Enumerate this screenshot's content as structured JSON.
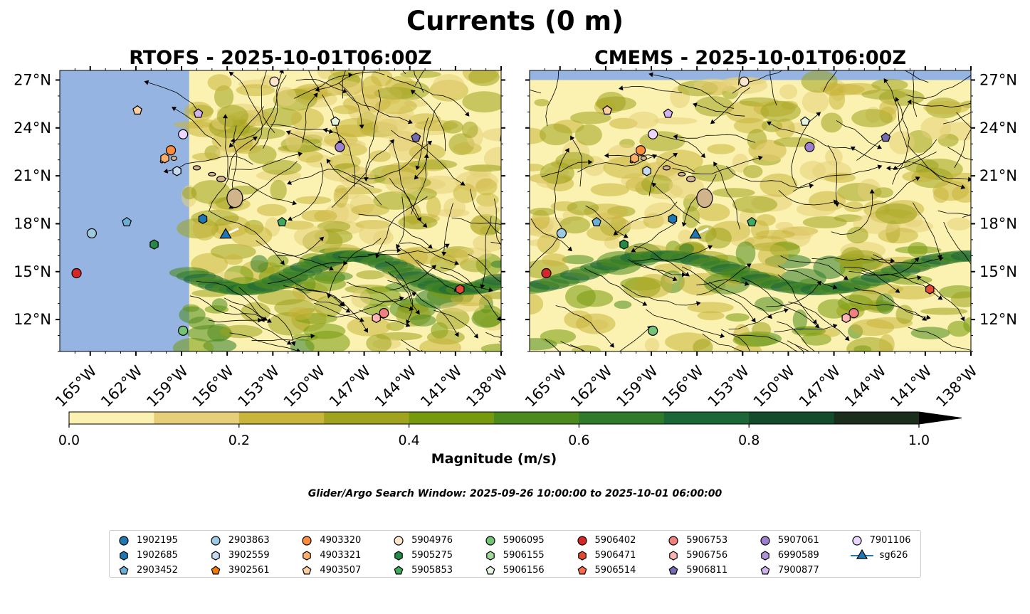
{
  "title": "Currents (0 m)",
  "window_note": "Glider/Argo Search Window: 2025-09-26 10:00:00 to 2025-10-01 06:00:00",
  "colors": {
    "land": "#d2b48c",
    "masked": "#95b4e1",
    "colormap": [
      "#fbf1b0",
      "#e6cf78",
      "#c9b53c",
      "#9fa31e",
      "#769a0e",
      "#4c8a1e",
      "#2f7b2b",
      "#1d6637",
      "#134c2b",
      "#1b2d1d"
    ]
  },
  "chart_data": {
    "type": "map",
    "panels": [
      {
        "title": "RTOFS - 2025-10-01T06:00Z",
        "model": "RTOFS",
        "time": "2025-10-01T06:00Z",
        "ytick_side": "left",
        "data_lon_min": -158.5
      },
      {
        "title": "CMEMS - 2025-10-01T06:00Z",
        "model": "CMEMS",
        "time": "2025-10-01T06:00Z",
        "ytick_side": "right",
        "data_lat_max": 27.0
      }
    ],
    "lon_range": [
      -167,
      -138
    ],
    "lat_range": [
      10,
      27.6
    ],
    "xticks": [
      {
        "lon": -165,
        "label": "165°W"
      },
      {
        "lon": -162,
        "label": "162°W"
      },
      {
        "lon": -159,
        "label": "159°W"
      },
      {
        "lon": -156,
        "label": "156°W"
      },
      {
        "lon": -153,
        "label": "153°W"
      },
      {
        "lon": -150,
        "label": "150°W"
      },
      {
        "lon": -147,
        "label": "147°W"
      },
      {
        "lon": -144,
        "label": "144°W"
      },
      {
        "lon": -141,
        "label": "141°W"
      },
      {
        "lon": -138,
        "label": "138°W"
      }
    ],
    "yticks": [
      {
        "lat": 12,
        "label": "12°N"
      },
      {
        "lat": 15,
        "label": "15°N"
      },
      {
        "lat": 18,
        "label": "18°N"
      },
      {
        "lat": 21,
        "label": "21°N"
      },
      {
        "lat": 24,
        "label": "24°N"
      },
      {
        "lat": 27,
        "label": "27°N"
      }
    ],
    "colorbar": {
      "label": "Magnitude (m/s)",
      "min": 0.0,
      "max": 1.0,
      "step": 0.1,
      "extend": "max",
      "ticks": [
        {
          "v": 0.0,
          "label": "0.0"
        },
        {
          "v": 0.2,
          "label": "0.2"
        },
        {
          "v": 0.4,
          "label": "0.4"
        },
        {
          "v": 0.6,
          "label": "0.6"
        },
        {
          "v": 0.8,
          "label": "0.8"
        },
        {
          "v": 1.0,
          "label": "1.0"
        }
      ]
    },
    "floats": [
      {
        "id": "1902195",
        "marker": "circle",
        "color": "#1f77b4",
        "lon": null,
        "lat": null
      },
      {
        "id": "1902685",
        "marker": "hexagon",
        "color": "#1f77b4",
        "lon": -157.6,
        "lat": 18.3
      },
      {
        "id": "2903452",
        "marker": "pentagon",
        "color": "#6baed6",
        "lon": -162.6,
        "lat": 18.1
      },
      {
        "id": "2903863",
        "marker": "circle",
        "color": "#9ecae1",
        "lon": -164.9,
        "lat": 17.4
      },
      {
        "id": "3902559",
        "marker": "hexagon",
        "color": "#c6dbef",
        "lon": -159.3,
        "lat": 21.3
      },
      {
        "id": "3902561",
        "marker": "pentagon",
        "color": "#f57b00",
        "lon": null,
        "lat": null
      },
      {
        "id": "4903320",
        "marker": "circle",
        "color": "#fd8d3c",
        "lon": -159.7,
        "lat": 22.6
      },
      {
        "id": "4903321",
        "marker": "hexagon",
        "color": "#fdae6b",
        "lon": -160.1,
        "lat": 22.1
      },
      {
        "id": "4903507",
        "marker": "pentagon",
        "color": "#fdd0a2",
        "lon": -161.9,
        "lat": 25.1
      },
      {
        "id": "5904976",
        "marker": "circle",
        "color": "#fee6ce",
        "lon": -152.9,
        "lat": 26.9
      },
      {
        "id": "5905275",
        "marker": "hexagon",
        "color": "#238b45",
        "lon": -160.8,
        "lat": 16.7
      },
      {
        "id": "5905853",
        "marker": "pentagon",
        "color": "#41ab5d",
        "lon": -152.4,
        "lat": 18.1
      },
      {
        "id": "5906095",
        "marker": "circle",
        "color": "#74c476",
        "lon": -158.9,
        "lat": 11.3
      },
      {
        "id": "5906155",
        "marker": "hexagon",
        "color": "#a1d99b",
        "lon": null,
        "lat": null
      },
      {
        "id": "5906156",
        "marker": "pentagon",
        "color": "#e5f5e0",
        "lon": -148.9,
        "lat": 24.4
      },
      {
        "id": "5906402",
        "marker": "circle",
        "color": "#d62728",
        "lon": -165.9,
        "lat": 14.9
      },
      {
        "id": "5906471",
        "marker": "hexagon",
        "color": "#e34a33",
        "lon": -140.7,
        "lat": 13.9
      },
      {
        "id": "5906514",
        "marker": "pentagon",
        "color": "#fb6a4a",
        "lon": null,
        "lat": null
      },
      {
        "id": "5906753",
        "marker": "circle",
        "color": "#f08080",
        "lon": -145.7,
        "lat": 12.4
      },
      {
        "id": "5906756",
        "marker": "hexagon",
        "color": "#fcb5b5",
        "lon": -146.2,
        "lat": 12.1
      },
      {
        "id": "5906811",
        "marker": "pentagon",
        "color": "#756bb1",
        "lon": -143.6,
        "lat": 23.4
      },
      {
        "id": "5907061",
        "marker": "circle",
        "color": "#9e7fcf",
        "lon": -148.6,
        "lat": 22.8
      },
      {
        "id": "6990589",
        "marker": "hexagon",
        "color": "#b294d6",
        "lon": null,
        "lat": null
      },
      {
        "id": "7900877",
        "marker": "pentagon",
        "color": "#d1b3f0",
        "lon": -157.9,
        "lat": 24.9
      },
      {
        "id": "7901106",
        "marker": "circle",
        "color": "#ecd5ff",
        "lon": -158.9,
        "lat": 23.6
      },
      {
        "id": "sg626",
        "marker": "triangle",
        "color": "#1f77b4",
        "line": true,
        "lon": -156.1,
        "lat": 17.3
      }
    ]
  }
}
